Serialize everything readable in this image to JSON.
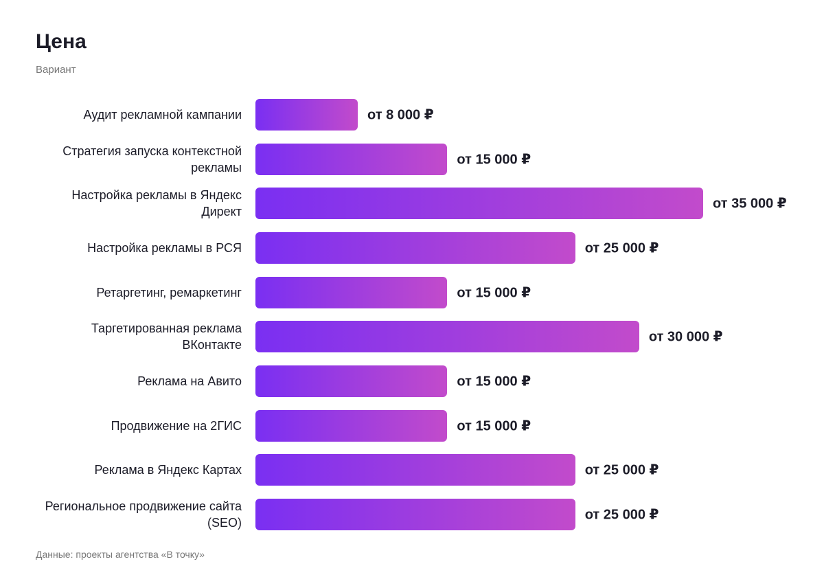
{
  "chart_data": {
    "type": "bar",
    "orientation": "horizontal",
    "title": "Цена",
    "subtitle": "Вариант",
    "categories": [
      "Аудит рекламной кампании",
      "Стратегия запуска контекстной рекламы",
      "Настройка рекламы в Яндекс Директ",
      "Настройка рекламы в РСЯ",
      "Ретаргетинг, ремаркетинг",
      "Таргетированная реклама ВКонтакте",
      "Реклама на Авито",
      "Продвижение на 2ГИС",
      "Реклама в Яндекс Картах",
      "Региональное продвижение сайта (SEO)"
    ],
    "values": [
      8000,
      15000,
      35000,
      25000,
      15000,
      30000,
      15000,
      15000,
      25000,
      25000
    ],
    "value_labels": [
      "от 8 000 ₽",
      "от 15 000 ₽",
      "от 35 000 ₽",
      "от 25 000 ₽",
      "от 15 000 ₽",
      "от 30 000 ₽",
      "от 15 000 ₽",
      "от 15 000 ₽",
      "от 25 000 ₽",
      "от 25 000 ₽"
    ],
    "colors": [
      "#7a2ff2",
      "#c24bcb"
    ],
    "source": "Данные: проекты агентства «В точку»"
  }
}
